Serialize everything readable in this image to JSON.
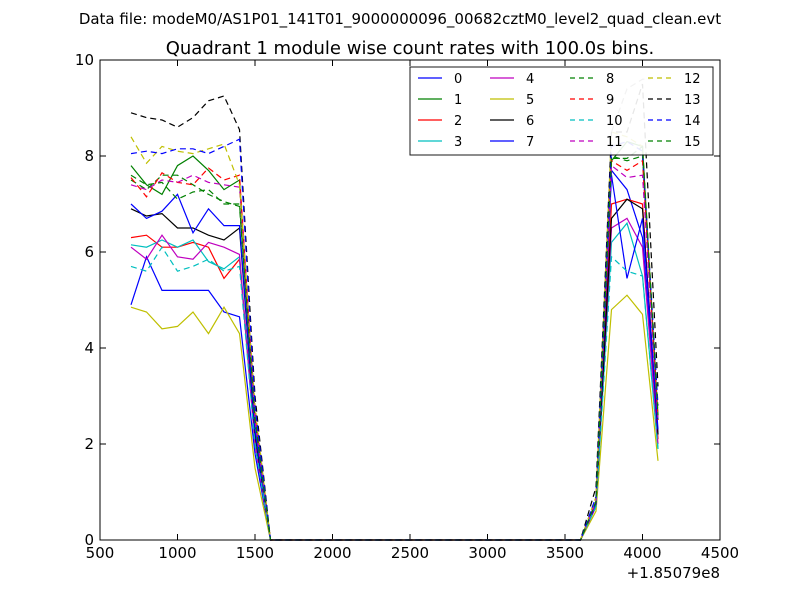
{
  "header": {
    "file_label": "Data file: modeM0/AS1P01_141T01_9000000096_00682cztM0_level2_quad_clean.evt"
  },
  "chart_data": {
    "type": "line",
    "title": "Quadrant 1 module wise count rates with 100.0s bins.",
    "xlabel": "",
    "ylabel": "",
    "x_offset_label": "+1.85079e8",
    "xlim": [
      500,
      4500
    ],
    "ylim": [
      0,
      10
    ],
    "x_ticks": [
      500,
      1000,
      1500,
      2000,
      2500,
      3000,
      3500,
      4000,
      4500
    ],
    "y_ticks": [
      0,
      2,
      4,
      6,
      8,
      10
    ],
    "legend_position": "top-right",
    "legend_columns": 4,
    "x": [
      700,
      800,
      900,
      1000,
      1100,
      1200,
      1300,
      1400,
      1500,
      1600,
      1700,
      3500,
      3600,
      3700,
      3800,
      3900,
      4000,
      4100
    ],
    "series": [
      {
        "name": "0",
        "color": "#0000ff",
        "dash": "solid",
        "values": [
          4.9,
          5.9,
          5.2,
          5.2,
          5.2,
          5.2,
          4.75,
          4.65,
          1.8,
          0,
          0,
          0,
          0,
          0.7,
          7.7,
          7.3,
          6.3,
          2.2
        ]
      },
      {
        "name": "1",
        "color": "#008000",
        "dash": "solid",
        "values": [
          7.8,
          7.4,
          7.2,
          7.8,
          8.0,
          7.7,
          7.3,
          7.5,
          2.6,
          0,
          0,
          0,
          0,
          0.8,
          7.9,
          8.3,
          8.2,
          2.5
        ]
      },
      {
        "name": "2",
        "color": "#ff0000",
        "dash": "solid",
        "values": [
          6.3,
          6.35,
          6.1,
          6.1,
          6.2,
          6.1,
          5.45,
          5.85,
          2.0,
          0,
          0,
          0,
          0,
          0.75,
          7.0,
          7.1,
          7.0,
          2.1
        ]
      },
      {
        "name": "3",
        "color": "#00bfbf",
        "dash": "solid",
        "values": [
          6.15,
          6.1,
          6.25,
          6.1,
          6.25,
          5.8,
          5.65,
          5.9,
          2.0,
          0,
          0,
          0,
          0,
          0.7,
          6.2,
          6.6,
          5.5,
          1.9
        ]
      },
      {
        "name": "4",
        "color": "#bf00bf",
        "dash": "solid",
        "values": [
          6.1,
          5.85,
          6.35,
          5.9,
          5.85,
          6.2,
          6.1,
          5.95,
          2.0,
          0,
          0,
          0,
          0,
          0.7,
          6.5,
          6.7,
          6.1,
          2.0
        ]
      },
      {
        "name": "5",
        "color": "#bfbf00",
        "dash": "solid",
        "values": [
          4.85,
          4.75,
          4.4,
          4.45,
          4.75,
          4.3,
          4.85,
          4.3,
          1.5,
          0,
          0,
          0,
          0,
          0.6,
          4.8,
          5.1,
          4.7,
          1.65
        ]
      },
      {
        "name": "6",
        "color": "#000000",
        "dash": "solid",
        "values": [
          6.9,
          6.75,
          6.8,
          6.5,
          6.5,
          6.35,
          6.25,
          6.5,
          2.2,
          0,
          0,
          0,
          0,
          0.75,
          6.7,
          7.1,
          6.9,
          2.2
        ]
      },
      {
        "name": "7",
        "color": "#0000ff",
        "dash": "solid",
        "values": [
          7.0,
          6.7,
          6.85,
          7.2,
          6.4,
          6.9,
          6.55,
          6.55,
          2.3,
          0,
          0,
          0,
          0,
          0.75,
          7.6,
          5.45,
          6.7,
          2.3
        ]
      },
      {
        "name": "8",
        "color": "#008000",
        "dash": "dashed",
        "values": [
          7.5,
          7.3,
          7.6,
          7.6,
          7.4,
          7.2,
          7.05,
          6.95,
          2.5,
          0,
          0,
          0,
          0,
          0.8,
          8.0,
          7.9,
          8.0,
          2.6
        ]
      },
      {
        "name": "9",
        "color": "#ff0000",
        "dash": "dashed",
        "values": [
          7.55,
          7.15,
          7.65,
          7.45,
          7.4,
          7.75,
          7.5,
          7.6,
          2.6,
          0,
          0,
          0,
          0,
          0.8,
          7.9,
          7.7,
          7.9,
          2.5
        ]
      },
      {
        "name": "10",
        "color": "#00bfbf",
        "dash": "dashed",
        "values": [
          5.7,
          5.6,
          6.1,
          5.6,
          5.7,
          5.85,
          5.6,
          5.7,
          2.0,
          0,
          0,
          0,
          0,
          0.7,
          5.9,
          5.6,
          5.5,
          1.9
        ]
      },
      {
        "name": "11",
        "color": "#bf00bf",
        "dash": "dashed",
        "values": [
          7.4,
          7.3,
          7.5,
          7.45,
          7.6,
          7.45,
          7.4,
          7.35,
          2.5,
          0,
          0,
          0,
          0,
          0.8,
          7.8,
          7.55,
          7.6,
          2.5
        ]
      },
      {
        "name": "12",
        "color": "#bfbf00",
        "dash": "dashed",
        "values": [
          8.4,
          7.85,
          8.2,
          8.1,
          8.05,
          8.15,
          8.25,
          7.4,
          2.8,
          0,
          0,
          0,
          0,
          0.9,
          8.5,
          8.4,
          8.2,
          2.8
        ]
      },
      {
        "name": "13",
        "color": "#000000",
        "dash": "dashed",
        "values": [
          8.9,
          8.8,
          8.75,
          8.6,
          8.8,
          9.15,
          9.25,
          8.55,
          3.0,
          0,
          0,
          0,
          0,
          1.1,
          8.5,
          8.5,
          9.5,
          3.2
        ]
      },
      {
        "name": "14",
        "color": "#0000ff",
        "dash": "dashed",
        "values": [
          8.05,
          8.1,
          8.05,
          8.15,
          8.15,
          8.05,
          8.2,
          8.35,
          2.8,
          0,
          0,
          0,
          0,
          0.9,
          8.2,
          8.3,
          8.1,
          2.8
        ]
      },
      {
        "name": "15",
        "color": "#008000",
        "dash": "dashed",
        "values": [
          7.6,
          7.4,
          7.45,
          7.1,
          7.25,
          7.3,
          7.0,
          7.0,
          2.5,
          0,
          0,
          0,
          0,
          0.8,
          7.95,
          7.95,
          8.2,
          2.6
        ]
      }
    ],
    "extra_lines": [
      {
        "name": "grey-dashed-trace",
        "color": "#808080",
        "dash": "dashed",
        "x": [
          3800,
          3900,
          4000,
          4050
        ],
        "values": [
          8.5,
          9.4,
          9.6,
          9.6
        ]
      }
    ]
  }
}
